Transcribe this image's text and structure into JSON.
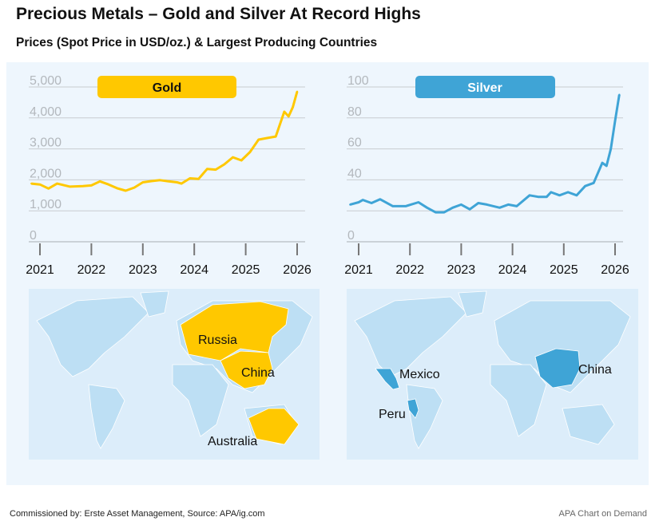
{
  "title": "Precious Metals – Gold and Silver At Record Highs",
  "subtitle": "Prices (Spot Price in USD/oz.) & Largest Producing Countries",
  "footer": {
    "source": "Commissioned by: Erste Asset Management, Source: APA/ig.com",
    "credit": "APA Chart on Demand"
  },
  "colors": {
    "gold": "#ffc800",
    "silver": "#3fa4d6",
    "panel": "#eef6fd",
    "map_bg": "#dcedfa",
    "land": "#bddff4"
  },
  "chart_data": [
    {
      "type": "line",
      "title": "Gold",
      "ylim": [
        0,
        5000
      ],
      "yticks": [
        0,
        1000,
        2000,
        3000,
        4000,
        5000
      ],
      "ytick_labels": [
        "0",
        "1,000",
        "2,000",
        "3,000",
        "4,000",
        "5,000"
      ],
      "xticks": [
        "2021",
        "2022",
        "2023",
        "2024",
        "2025",
        "2026"
      ],
      "grid": true,
      "x": [
        "2020-11",
        "2021-01",
        "2021-03",
        "2021-05",
        "2021-08",
        "2021-11",
        "2022-01",
        "2022-03",
        "2022-05",
        "2022-07",
        "2022-09",
        "2022-11",
        "2023-01",
        "2023-03",
        "2023-05",
        "2023-07",
        "2023-09",
        "2023-10",
        "2023-12",
        "2024-02",
        "2024-04",
        "2024-06",
        "2024-08",
        "2024-10",
        "2024-12",
        "2025-02",
        "2025-04",
        "2025-06",
        "2025-08",
        "2025-10",
        "2025-11",
        "2025-12",
        "2026-01"
      ],
      "y": [
        1880,
        1850,
        1720,
        1880,
        1780,
        1800,
        1820,
        1950,
        1850,
        1730,
        1650,
        1750,
        1920,
        1960,
        1990,
        1950,
        1920,
        1880,
        2050,
        2030,
        2350,
        2330,
        2500,
        2730,
        2630,
        2900,
        3300,
        3350,
        3400,
        4200,
        4050,
        4350,
        4850
      ]
    },
    {
      "type": "line",
      "title": "Silver",
      "ylim": [
        0,
        100
      ],
      "yticks": [
        0,
        20,
        40,
        60,
        80,
        100
      ],
      "ytick_labels": [
        "0",
        "",
        "40",
        "60",
        "80",
        "100"
      ],
      "xticks": [
        "2021",
        "2022",
        "2023",
        "2024",
        "2025",
        "2026"
      ],
      "grid": true,
      "x": [
        "2020-11",
        "2021-01",
        "2021-02",
        "2021-04",
        "2021-06",
        "2021-09",
        "2021-12",
        "2022-03",
        "2022-05",
        "2022-07",
        "2022-09",
        "2022-11",
        "2023-01",
        "2023-03",
        "2023-05",
        "2023-07",
        "2023-10",
        "2023-12",
        "2024-02",
        "2024-05",
        "2024-07",
        "2024-09",
        "2024-10",
        "2024-12",
        "2025-02",
        "2025-04",
        "2025-06",
        "2025-08",
        "2025-10",
        "2025-11",
        "2025-12",
        "2026-01",
        "2026-02"
      ],
      "y": [
        24,
        25.5,
        27,
        25,
        27.5,
        23,
        23,
        25.5,
        22,
        19,
        19,
        22,
        24,
        21,
        25,
        24,
        22,
        24,
        23,
        30,
        29,
        29,
        32,
        30,
        32,
        30,
        36,
        38,
        51,
        49,
        60,
        78,
        95
      ]
    }
  ],
  "maps": {
    "gold": {
      "countries": [
        "Russia",
        "China",
        "Australia"
      ]
    },
    "silver": {
      "countries": [
        "Mexico",
        "Peru",
        "China"
      ]
    }
  }
}
